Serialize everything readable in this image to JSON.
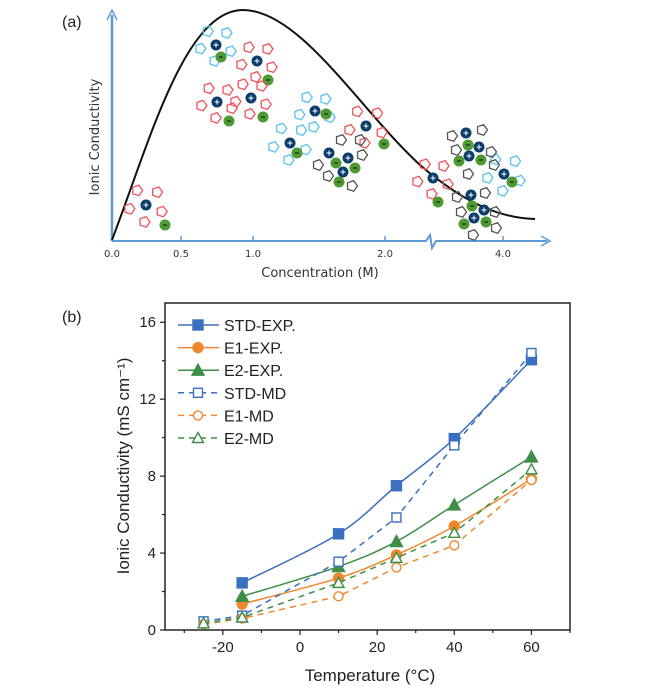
{
  "panel_a": {
    "label": "(a)",
    "ylabel": "Ionic Conductivity",
    "xlabel": "Concentration (M)",
    "x_tick_labels": [
      "0.0",
      "0.5",
      "1.0",
      "2.0",
      "4.0"
    ],
    "axis_color": "#5b9bd5",
    "curve_color": "#111111",
    "cation_color": "#0b3d6b",
    "anion_color": "#4d9a32",
    "solvent_colors": [
      "#f0535a",
      "#56c2ee",
      "#555555"
    ]
  },
  "panel_b": {
    "label": "(b)"
  },
  "chart_data": {
    "type": "line",
    "title": "",
    "xlabel": "Temperature (°C)",
    "ylabel": "Ionic Conductivity (mS cm⁻¹)",
    "xlim": [
      -35,
      70
    ],
    "ylim": [
      0,
      17
    ],
    "x_ticks": [
      -20,
      0,
      20,
      40,
      60
    ],
    "y_ticks": [
      0,
      4,
      8,
      12,
      16
    ],
    "grid": false,
    "legend": "top-left",
    "series": [
      {
        "name": "STD-EXP.",
        "color": "#3b6fc0",
        "marker": "square",
        "filled": true,
        "dashed": false,
        "x": [
          -15,
          10,
          25,
          40,
          60
        ],
        "y": [
          2.45,
          5.0,
          7.5,
          9.95,
          14.05
        ]
      },
      {
        "name": "E1-EXP.",
        "color": "#f0872e",
        "marker": "circle",
        "filled": true,
        "dashed": false,
        "x": [
          -15,
          10,
          25,
          40,
          60
        ],
        "y": [
          1.35,
          2.7,
          3.9,
          5.4,
          7.85
        ]
      },
      {
        "name": "E2-EXP.",
        "color": "#3d8f45",
        "marker": "triangle",
        "filled": true,
        "dashed": false,
        "x": [
          -15,
          10,
          25,
          40,
          60
        ],
        "y": [
          1.75,
          3.3,
          4.6,
          6.5,
          9.0
        ]
      },
      {
        "name": "STD-MD",
        "color": "#3b6fc0",
        "marker": "square",
        "filled": false,
        "dashed": true,
        "x": [
          -25,
          -15,
          10,
          25,
          40,
          60
        ],
        "y": [
          0.45,
          0.75,
          3.55,
          5.85,
          9.6,
          14.4
        ]
      },
      {
        "name": "E1-MD",
        "color": "#f0872e",
        "marker": "circle",
        "filled": false,
        "dashed": true,
        "x": [
          -25,
          -15,
          10,
          25,
          40,
          60
        ],
        "y": [
          0.3,
          0.6,
          1.75,
          3.25,
          4.4,
          7.8
        ]
      },
      {
        "name": "E2-MD",
        "color": "#3d8f45",
        "marker": "triangle",
        "filled": false,
        "dashed": true,
        "x": [
          -25,
          -15,
          10,
          25,
          40,
          60
        ],
        "y": [
          0.35,
          0.65,
          2.45,
          3.75,
          5.05,
          8.35
        ]
      }
    ]
  }
}
